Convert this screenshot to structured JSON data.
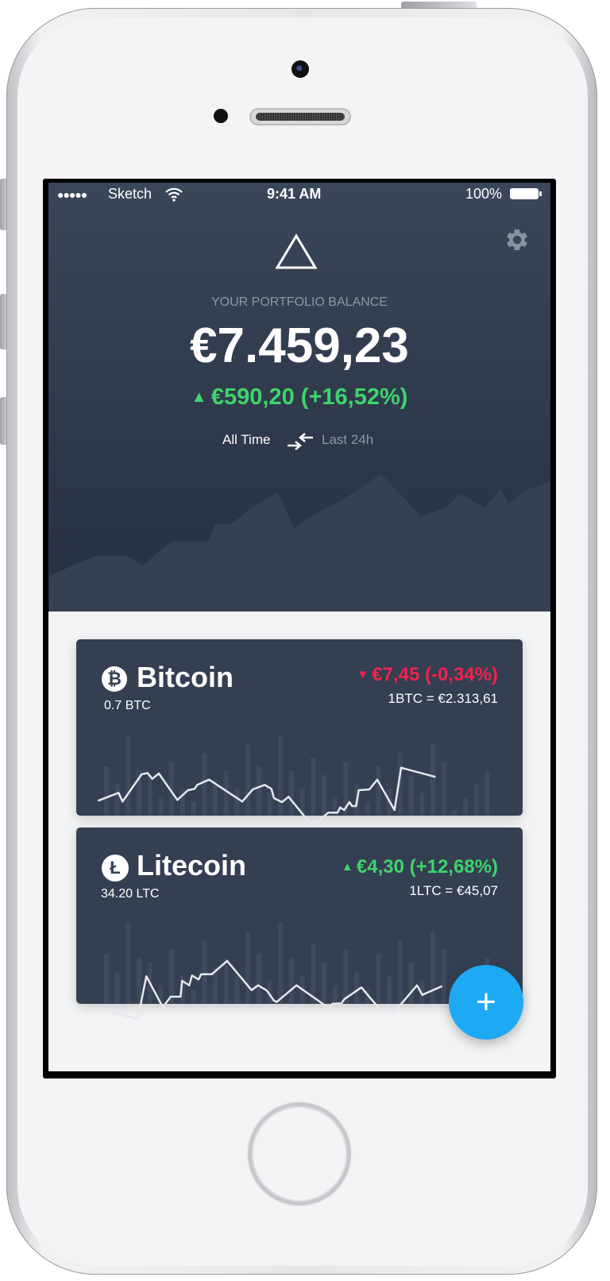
{
  "status_bar": {
    "carrier": "Sketch",
    "time": "9:41 AM",
    "battery": "100%",
    "signal_dots": 5
  },
  "header": {
    "logo_icon": "triangle-outline-icon",
    "settings_icon": "gear-icon",
    "label": "YOUR PORTFOLIO BALANCE",
    "balance": "€7.459,23",
    "change": "€590,20 (+16,52%)",
    "change_direction": "up",
    "range_active": "All Time",
    "range_swap_icon": "swap-arrows-icon",
    "range_inactive": "Last 24h"
  },
  "colors": {
    "up": "#3dd46a",
    "down": "#f0234f",
    "card": "#343f52",
    "header_top": "#3a4659",
    "header_bottom": "#262f42",
    "fab": "#1ea9f5"
  },
  "coins": [
    {
      "name": "Bitcoin",
      "icon": "bitcoin-icon",
      "symbol_glyph": "₿",
      "holding": "0.7 BTC",
      "change": "€7,45 (-0,34%)",
      "direction": "down",
      "rate": "1BTC = €2.313,61"
    },
    {
      "name": "Litecoin",
      "icon": "litecoin-icon",
      "symbol_glyph": "Ł",
      "holding": "34.20 LTC",
      "change": "€4,30 (+12,68%)",
      "direction": "up",
      "rate": "1LTC = €45,07"
    }
  ],
  "fab": {
    "label": "+",
    "icon": "plus-icon"
  }
}
